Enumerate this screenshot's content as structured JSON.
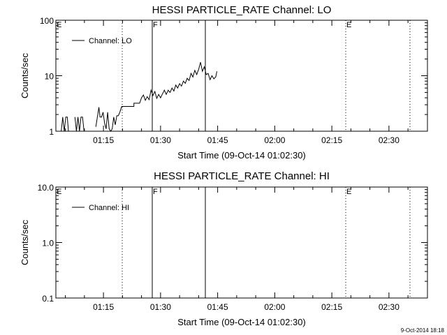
{
  "chart_data": [
    {
      "type": "line",
      "title": "HESSI PARTICLE_RATE Channel: LO",
      "xlabel": "Start Time (09-Oct-14 01:02:30)",
      "ylabel": "Counts/sec",
      "yscale": "log",
      "ylim": [
        1,
        100
      ],
      "xlim_min_after_start": [
        0,
        97
      ],
      "x_ticks": [
        "01:15",
        "01:30",
        "01:45",
        "02:00",
        "02:15",
        "02:30"
      ],
      "y_ticks": [
        "1",
        "10",
        "100"
      ],
      "legend": "top-left",
      "series": [
        {
          "name": "Channel: LO",
          "x_min_after_start": [
            1.4,
            1.8,
            2.2,
            2.6,
            3.0,
            3.3,
            5.0,
            5.4,
            5.8,
            6.2,
            6.6,
            7.0,
            7.4,
            10.5,
            10.9,
            11.3,
            11.6,
            12.0,
            12.4,
            12.8,
            13.2,
            13.6,
            14.0,
            14.4,
            14.8,
            15.2,
            15.6,
            16.0,
            16.4,
            16.8,
            17.3
          ],
          "values": [
            1,
            1.8,
            1,
            1.8,
            1.8,
            1,
            1.8,
            1,
            1.8,
            1,
            1.8,
            1.8,
            1,
            1.2,
            1.8,
            2.7,
            1.8,
            1.8,
            2.2,
            1.4,
            1.1,
            2.2,
            1.1,
            1,
            1.1,
            1.8,
            1.3,
            1.9,
            1.9,
            2.2,
            2.8
          ]
        }
      ],
      "annotations": [
        "E",
        "F",
        "E"
      ]
    },
    {
      "type": "line",
      "title": "HESSI PARTICLE_RATE Channel: HI",
      "xlabel": "Start Time (09-Oct-14 01:02:30)",
      "ylabel": "Counts/sec",
      "yscale": "log",
      "ylim": [
        0.1,
        10.0
      ],
      "xlim_min_after_start": [
        0,
        97
      ],
      "x_ticks": [
        "01:15",
        "01:30",
        "01:45",
        "02:00",
        "02:15",
        "02:30"
      ],
      "y_ticks": [
        "0.1",
        "1.0",
        "10.0"
      ],
      "legend": "top-left",
      "series": [
        {
          "name": "Channel: HI",
          "x_min_after_start": [],
          "values": []
        }
      ],
      "annotations": [
        "E",
        "F",
        "E"
      ]
    }
  ],
  "footer": {
    "timestamp": "9-Oct-2014 18:18"
  }
}
